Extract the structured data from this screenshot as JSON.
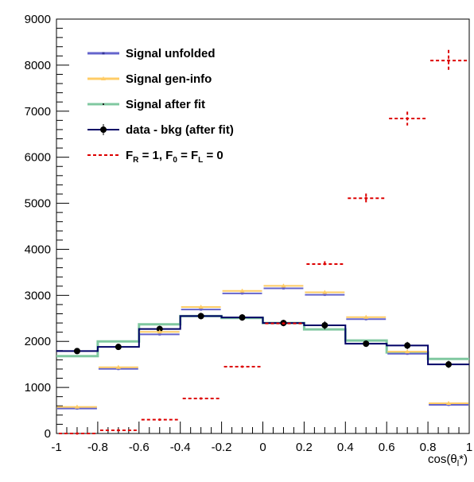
{
  "chart_data": {
    "type": "histogram",
    "xlabel_main": "cos(θ",
    "xlabel_sub": "l",
    "xlabel_end": "*)",
    "ylabel": "",
    "xlim": [
      -1,
      1
    ],
    "ylim": [
      0,
      9000
    ],
    "grid": false,
    "legend_position": "top-left",
    "x_ticks": [
      "-1",
      "-0.8",
      "-0.6",
      "-0.4",
      "-0.2",
      "0",
      "0.2",
      "0.4",
      "0.6",
      "0.8",
      "1"
    ],
    "y_ticks": [
      "0",
      "1000",
      "2000",
      "3000",
      "4000",
      "5000",
      "6000",
      "7000",
      "8000",
      "9000"
    ],
    "bin_edges": [
      -1.0,
      -0.8,
      -0.6,
      -0.4,
      -0.2,
      0.0,
      0.2,
      0.4,
      0.6,
      0.8,
      1.0
    ],
    "series": [
      {
        "name": "Signal unfolded",
        "style": "marker-bar",
        "color": "#6464cc",
        "values": [
          560,
          1420,
          2170,
          2710,
          3060,
          3170,
          3030,
          2500,
          1750,
          640
        ]
      },
      {
        "name": "Signal gen-info",
        "style": "marker-bar",
        "color": "#ffcc66",
        "values": [
          560,
          1420,
          2190,
          2730,
          3080,
          3190,
          3050,
          2510,
          1760,
          640
        ]
      },
      {
        "name": "Signal after fit",
        "style": "step",
        "color": "#80c8a0",
        "values": [
          1680,
          2000,
          2370,
          2550,
          2510,
          2400,
          2260,
          2020,
          1760,
          1620
        ]
      },
      {
        "name": "data - bkg (after fit)",
        "style": "step-points",
        "color": "#000066",
        "point_color": "#000000",
        "values": [
          1790,
          1880,
          2270,
          2550,
          2520,
          2400,
          2350,
          1950,
          1910,
          1500
        ],
        "errors": [
          60,
          60,
          70,
          70,
          70,
          70,
          90,
          70,
          80,
          80
        ]
      },
      {
        "name": "F_R = 1, F_0 = F_L = 0",
        "legend_parts": [
          "F",
          "R",
          " = 1, F",
          "0",
          " = F",
          "L",
          " = 0"
        ],
        "style": "dashed-bar",
        "color": "#dd0000",
        "values": [
          0,
          70,
          300,
          760,
          1450,
          2390,
          3680,
          5110,
          6840,
          8100
        ],
        "errors": [
          0,
          0,
          0,
          0,
          0,
          0,
          60,
          100,
          150,
          230
        ]
      }
    ]
  }
}
